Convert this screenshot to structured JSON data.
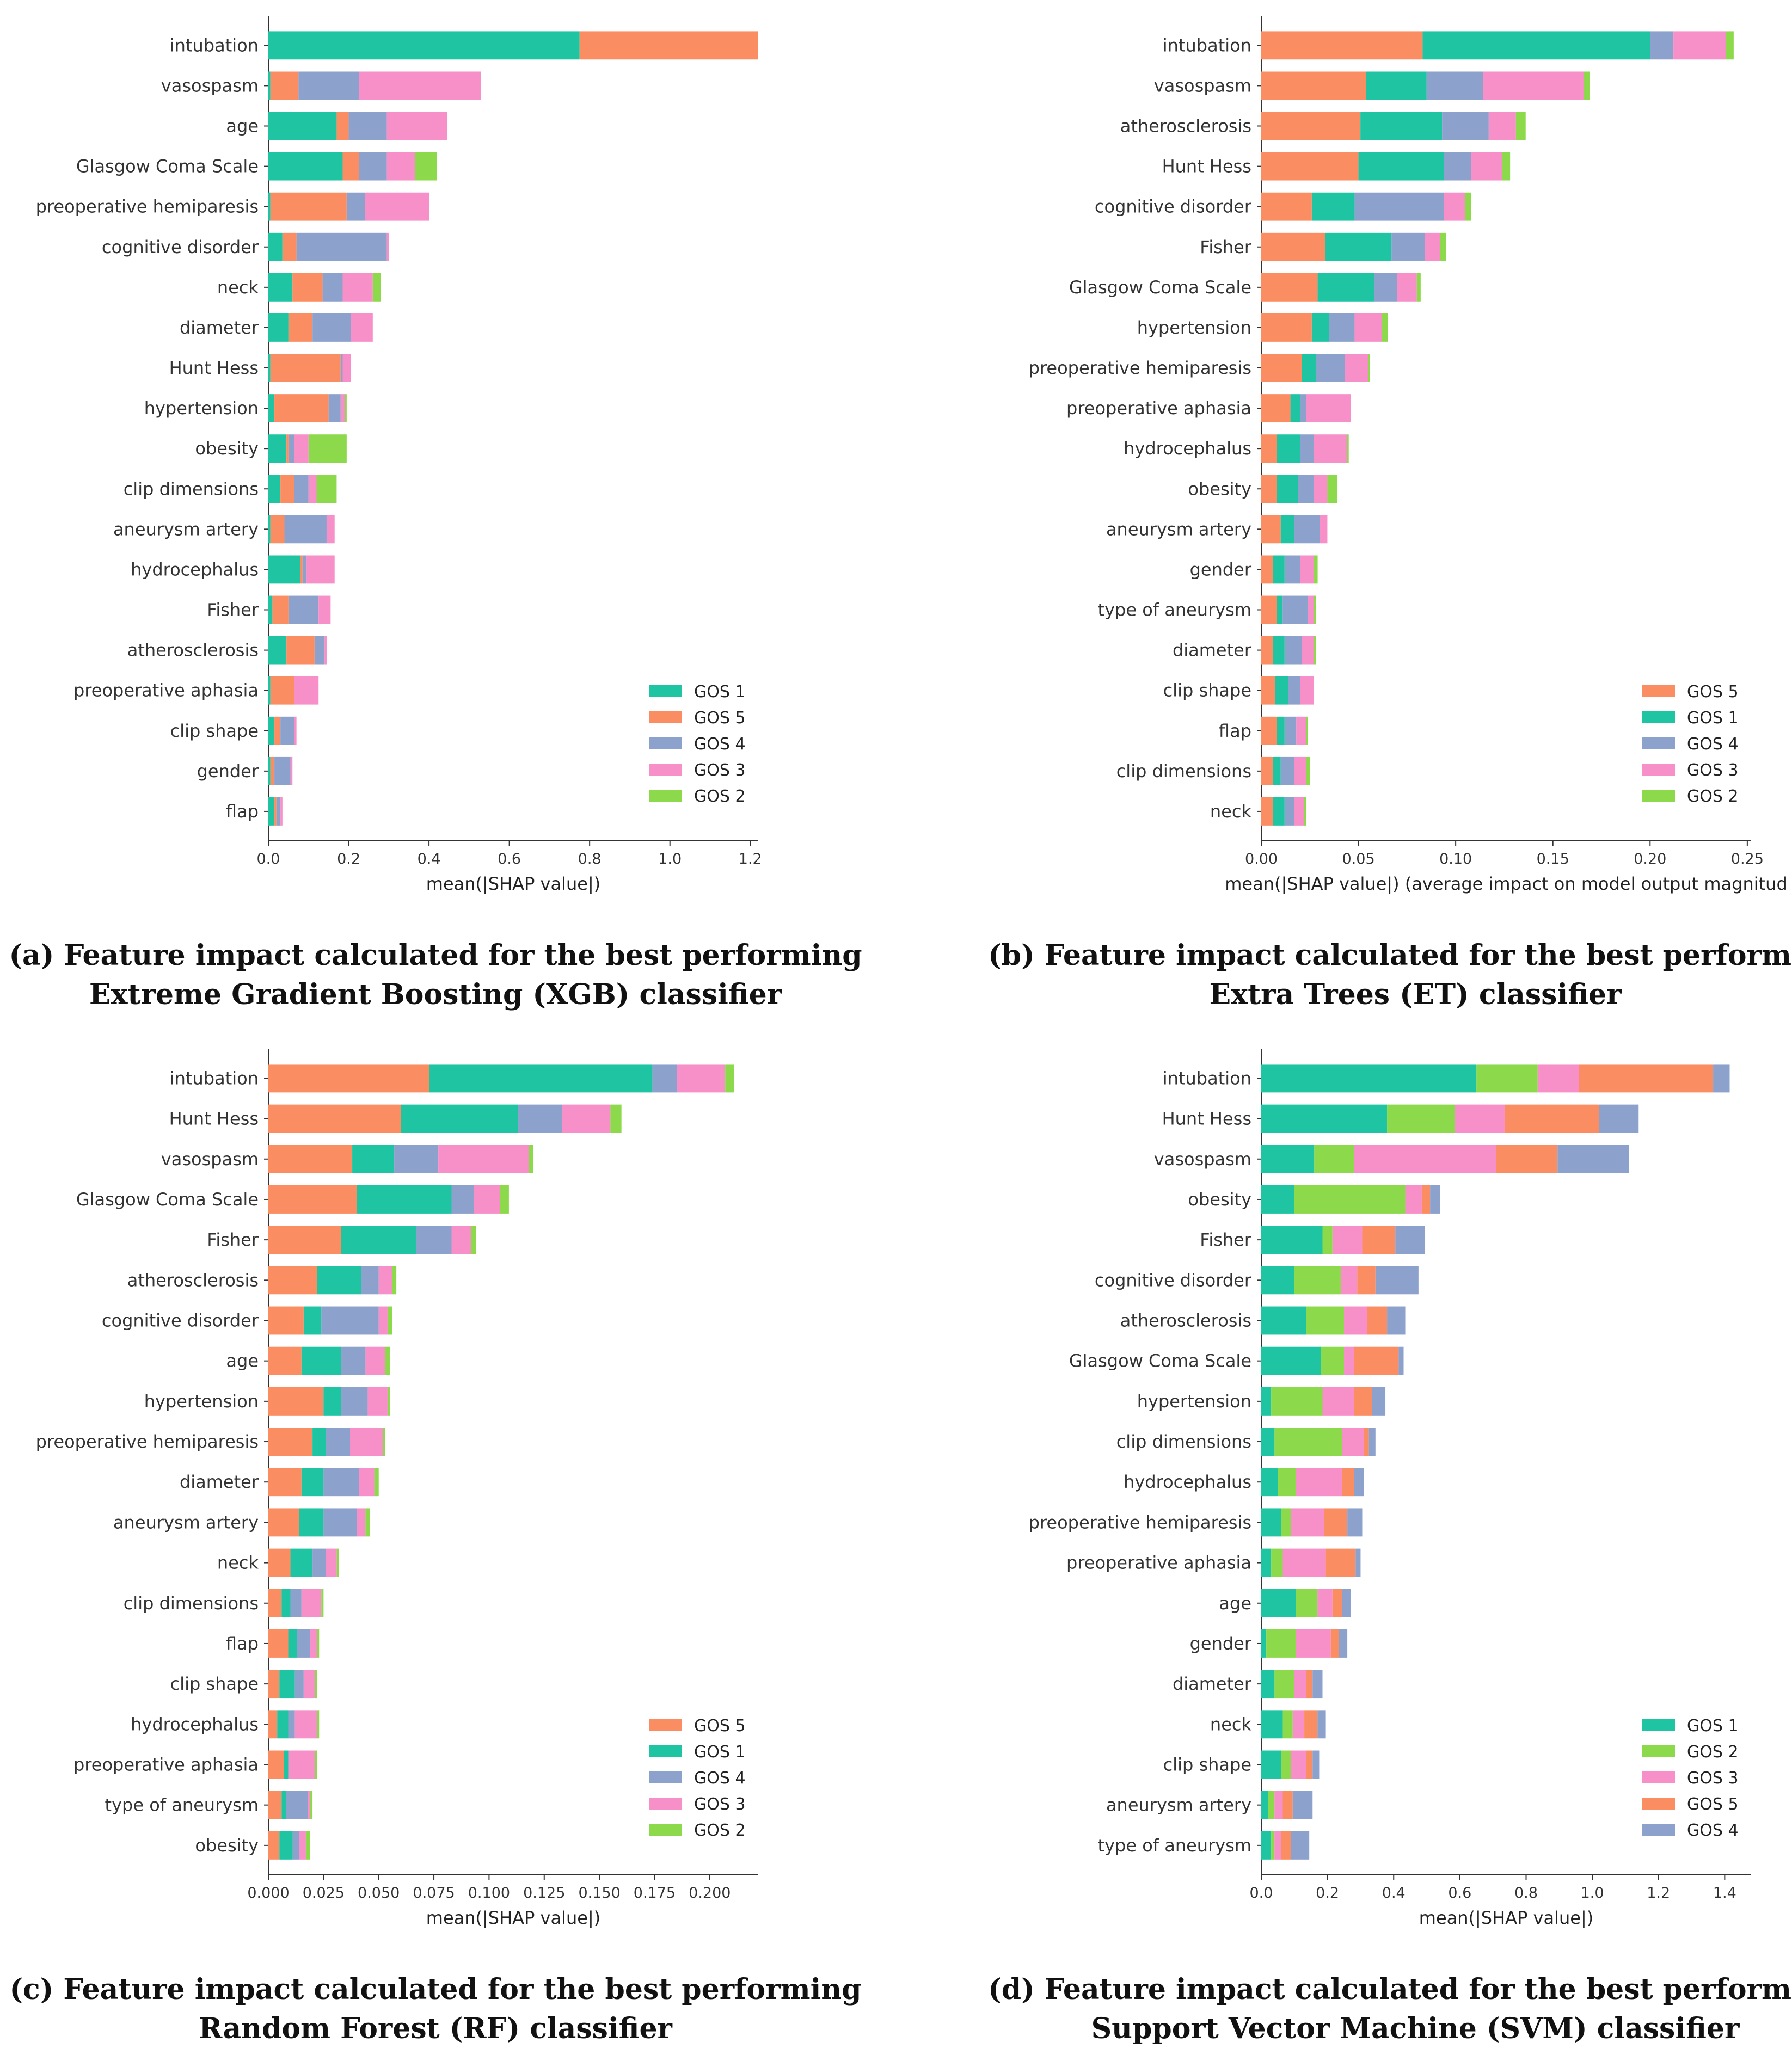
{
  "colors": {
    "GOS 1": "#1fc5a2",
    "GOS 2": "#8dd94c",
    "GOS 3": "#f78fc8",
    "GOS 4": "#8ca1cc",
    "GOS 5": "#fb8d62"
  },
  "captions": {
    "a": [
      "(a) Feature impact calculated for the best performing",
      "Extreme Gradient Boosting (XGB) classifier"
    ],
    "b": [
      "(b) Feature impact calculated for the best performing",
      "Extra Trees (ET) classifier"
    ],
    "c": [
      "(c) Feature impact calculated for the best performing",
      "Random Forest (RF) classifier"
    ],
    "d": [
      "(d) Feature impact calculated for the best performing",
      "Support Vector Machine (SVM) classifier"
    ]
  },
  "chart_data": [
    {
      "id": "a",
      "type": "bar",
      "orientation": "horizontal",
      "stacked": true,
      "xlabel": "mean(|SHAP value|)",
      "xlim": [
        0,
        1.22
      ],
      "xticks": [
        "0.0",
        "0.2",
        "0.4",
        "0.6",
        "0.8",
        "1.0",
        "1.2"
      ],
      "legend_position": "bottom-right",
      "categories": [
        "intubation",
        "vasospasm",
        "age",
        "Glasgow Coma Scale",
        "preoperative hemiparesis",
        "cognitive disorder",
        "neck",
        "diameter",
        "Hunt Hess",
        "hypertension",
        "obesity",
        "clip dimensions",
        "aneurysm artery",
        "hydrocephalus",
        "Fisher",
        "atherosclerosis",
        "preoperative aphasia",
        "clip shape",
        "gender",
        "flap"
      ],
      "series": [
        {
          "name": "GOS 1",
          "values": [
            0.775,
            0.005,
            0.17,
            0.185,
            0.005,
            0.035,
            0.06,
            0.05,
            0.005,
            0.015,
            0.045,
            0.03,
            0.005,
            0.08,
            0.01,
            0.045,
            0.005,
            0.015,
            0.005,
            0.015
          ]
        },
        {
          "name": "GOS 5",
          "values": [
            0.445,
            0.07,
            0.03,
            0.04,
            0.19,
            0.035,
            0.075,
            0.06,
            0.175,
            0.135,
            0.005,
            0.035,
            0.035,
            0.005,
            0.04,
            0.07,
            0.06,
            0.015,
            0.01,
            0.005
          ]
        },
        {
          "name": "GOS 4",
          "values": [
            0.0,
            0.15,
            0.095,
            0.07,
            0.045,
            0.225,
            0.05,
            0.095,
            0.005,
            0.03,
            0.015,
            0.035,
            0.105,
            0.01,
            0.075,
            0.025,
            0.0,
            0.035,
            0.04,
            0.01
          ]
        },
        {
          "name": "GOS 3",
          "values": [
            0.0,
            0.305,
            0.15,
            0.07,
            0.16,
            0.005,
            0.075,
            0.055,
            0.02,
            0.01,
            0.035,
            0.02,
            0.02,
            0.07,
            0.03,
            0.005,
            0.06,
            0.005,
            0.005,
            0.005
          ]
        },
        {
          "name": "GOS 2",
          "values": [
            0.0,
            0.0,
            0.0,
            0.055,
            0.0,
            0.0,
            0.02,
            0.0,
            0.0,
            0.005,
            0.095,
            0.05,
            0.0,
            0.0,
            0.0,
            0.0,
            0.0,
            0.0,
            0.0,
            0.0
          ]
        }
      ]
    },
    {
      "id": "b",
      "type": "bar",
      "orientation": "horizontal",
      "stacked": true,
      "xlabel": "mean(|SHAP value|) (average impact on model output magnitud",
      "xlim": [
        0,
        0.252
      ],
      "xticks": [
        "0.00",
        "0.05",
        "0.10",
        "0.15",
        "0.20",
        "0.25"
      ],
      "legend_position": "bottom-right",
      "categories": [
        "intubation",
        "vasospasm",
        "atherosclerosis",
        "Hunt Hess",
        "cognitive disorder",
        "Fisher",
        "Glasgow Coma Scale",
        "hypertension",
        "preoperative hemiparesis",
        "preoperative aphasia",
        "hydrocephalus",
        "obesity",
        "aneurysm artery",
        "gender",
        "type of aneurysm",
        "diameter",
        "clip shape",
        "flap",
        "clip dimensions",
        "neck"
      ],
      "series": [
        {
          "name": "GOS 5",
          "values": [
            0.083,
            0.054,
            0.051,
            0.05,
            0.026,
            0.033,
            0.029,
            0.026,
            0.021,
            0.015,
            0.008,
            0.008,
            0.01,
            0.006,
            0.008,
            0.006,
            0.007,
            0.008,
            0.006,
            0.006
          ]
        },
        {
          "name": "GOS 1",
          "values": [
            0.117,
            0.031,
            0.042,
            0.044,
            0.022,
            0.034,
            0.029,
            0.009,
            0.007,
            0.005,
            0.012,
            0.011,
            0.007,
            0.006,
            0.003,
            0.006,
            0.007,
            0.004,
            0.004,
            0.006
          ]
        },
        {
          "name": "GOS 4",
          "values": [
            0.012,
            0.029,
            0.024,
            0.014,
            0.046,
            0.017,
            0.012,
            0.013,
            0.015,
            0.003,
            0.007,
            0.008,
            0.013,
            0.008,
            0.013,
            0.009,
            0.006,
            0.006,
            0.007,
            0.005
          ]
        },
        {
          "name": "GOS 3",
          "values": [
            0.027,
            0.052,
            0.014,
            0.016,
            0.011,
            0.008,
            0.01,
            0.014,
            0.012,
            0.023,
            0.017,
            0.007,
            0.004,
            0.007,
            0.003,
            0.006,
            0.007,
            0.005,
            0.006,
            0.005
          ]
        },
        {
          "name": "GOS 2",
          "values": [
            0.004,
            0.003,
            0.005,
            0.004,
            0.003,
            0.003,
            0.002,
            0.003,
            0.001,
            0.0,
            0.001,
            0.005,
            0.0,
            0.002,
            0.001,
            0.001,
            0.0,
            0.001,
            0.002,
            0.001
          ]
        }
      ]
    },
    {
      "id": "c",
      "type": "bar",
      "orientation": "horizontal",
      "stacked": true,
      "xlabel": "mean(|SHAP value|)",
      "xlim": [
        0,
        0.222
      ],
      "xticks": [
        "0.000",
        "0.025",
        "0.050",
        "0.075",
        "0.100",
        "0.125",
        "0.150",
        "0.175",
        "0.200"
      ],
      "legend_position": "bottom-right",
      "categories": [
        "intubation",
        "Hunt Hess",
        "vasospasm",
        "Glasgow Coma Scale",
        "Fisher",
        "atherosclerosis",
        "cognitive disorder",
        "age",
        "hypertension",
        "preoperative hemiparesis",
        "diameter",
        "aneurysm artery",
        "neck",
        "clip dimensions",
        "flap",
        "clip shape",
        "hydrocephalus",
        "preoperative aphasia",
        "type of aneurysm",
        "obesity"
      ],
      "series": [
        {
          "name": "GOS 5",
          "values": [
            0.073,
            0.06,
            0.038,
            0.04,
            0.033,
            0.022,
            0.016,
            0.015,
            0.025,
            0.02,
            0.015,
            0.014,
            0.01,
            0.006,
            0.009,
            0.005,
            0.004,
            0.007,
            0.006,
            0.005
          ]
        },
        {
          "name": "GOS 1",
          "values": [
            0.101,
            0.053,
            0.019,
            0.043,
            0.034,
            0.02,
            0.008,
            0.018,
            0.008,
            0.006,
            0.01,
            0.011,
            0.01,
            0.004,
            0.004,
            0.007,
            0.005,
            0.002,
            0.002,
            0.006
          ]
        },
        {
          "name": "GOS 4",
          "values": [
            0.011,
            0.02,
            0.02,
            0.01,
            0.016,
            0.008,
            0.026,
            0.011,
            0.012,
            0.011,
            0.016,
            0.015,
            0.006,
            0.005,
            0.006,
            0.004,
            0.003,
            0.0,
            0.01,
            0.003
          ]
        },
        {
          "name": "GOS 3",
          "values": [
            0.022,
            0.022,
            0.041,
            0.012,
            0.009,
            0.006,
            0.004,
            0.009,
            0.009,
            0.015,
            0.007,
            0.004,
            0.005,
            0.009,
            0.003,
            0.005,
            0.01,
            0.012,
            0.001,
            0.003
          ]
        },
        {
          "name": "GOS 2",
          "values": [
            0.004,
            0.005,
            0.002,
            0.004,
            0.002,
            0.002,
            0.002,
            0.002,
            0.001,
            0.001,
            0.002,
            0.002,
            0.001,
            0.001,
            0.001,
            0.001,
            0.001,
            0.001,
            0.001,
            0.002
          ]
        }
      ]
    },
    {
      "id": "d",
      "type": "bar",
      "orientation": "horizontal",
      "stacked": true,
      "xlabel": "mean(|SHAP value|)",
      "xlim": [
        0,
        1.48
      ],
      "xticks": [
        "0.0",
        "0.2",
        "0.4",
        "0.6",
        "0.8",
        "1.0",
        "1.2",
        "1.4"
      ],
      "legend_position": "bottom-right",
      "categories": [
        "intubation",
        "Hunt Hess",
        "vasospasm",
        "obesity",
        "Fisher",
        "cognitive disorder",
        "atherosclerosis",
        "Glasgow Coma Scale",
        "hypertension",
        "clip dimensions",
        "hydrocephalus",
        "preoperative hemiparesis",
        "preoperative aphasia",
        "age",
        "gender",
        "diameter",
        "neck",
        "clip shape",
        "aneurysm artery",
        "type of aneurysm"
      ],
      "series": [
        {
          "name": "GOS 1",
          "values": [
            0.65,
            0.38,
            0.16,
            0.1,
            0.185,
            0.1,
            0.135,
            0.18,
            0.03,
            0.04,
            0.05,
            0.06,
            0.03,
            0.105,
            0.015,
            0.04,
            0.065,
            0.06,
            0.02,
            0.03
          ]
        },
        {
          "name": "GOS 2",
          "values": [
            0.185,
            0.205,
            0.12,
            0.335,
            0.03,
            0.14,
            0.115,
            0.07,
            0.155,
            0.205,
            0.055,
            0.03,
            0.035,
            0.065,
            0.09,
            0.06,
            0.03,
            0.03,
            0.02,
            0.01
          ]
        },
        {
          "name": "GOS 3",
          "values": [
            0.125,
            0.15,
            0.43,
            0.05,
            0.09,
            0.05,
            0.07,
            0.03,
            0.095,
            0.065,
            0.14,
            0.1,
            0.13,
            0.045,
            0.105,
            0.035,
            0.035,
            0.045,
            0.025,
            0.02
          ]
        },
        {
          "name": "GOS 5",
          "values": [
            0.405,
            0.285,
            0.185,
            0.025,
            0.1,
            0.055,
            0.06,
            0.135,
            0.055,
            0.015,
            0.035,
            0.07,
            0.09,
            0.03,
            0.025,
            0.02,
            0.04,
            0.02,
            0.03,
            0.03
          ]
        },
        {
          "name": "GOS 4",
          "values": [
            0.05,
            0.12,
            0.215,
            0.03,
            0.09,
            0.13,
            0.055,
            0.015,
            0.04,
            0.02,
            0.03,
            0.045,
            0.015,
            0.025,
            0.025,
            0.03,
            0.025,
            0.02,
            0.06,
            0.055
          ]
        }
      ]
    }
  ]
}
